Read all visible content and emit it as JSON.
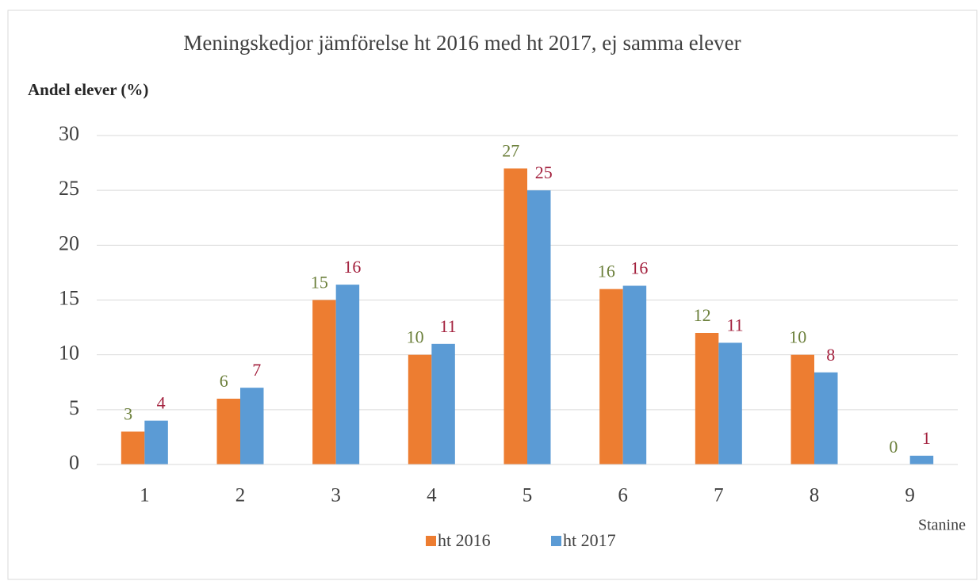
{
  "chart_data": {
    "type": "bar",
    "title": "Meningskedjor jämförelse ht 2016 med ht 2017, ej samma elever",
    "y_label": "Andel elever (%)",
    "x_label": "Stanine",
    "categories": [
      "1",
      "2",
      "3",
      "4",
      "5",
      "6",
      "7",
      "8",
      "9"
    ],
    "series": [
      {
        "name": "ht 2016",
        "color": "#ed7d31",
        "label_color": "#6b7f3a",
        "values": [
          3,
          6,
          15,
          10,
          27,
          16,
          12,
          10,
          0
        ]
      },
      {
        "name": "ht 2017",
        "color": "#5b9bd5",
        "label_color": "#a3203d",
        "values": [
          4,
          7,
          16.4,
          11,
          25,
          16.3,
          11.1,
          8.4,
          0.8
        ],
        "value_labels": [
          "4",
          "7",
          "16",
          "11",
          "25",
          "16",
          "11",
          "8",
          "1"
        ]
      }
    ],
    "ylim": [
      0,
      30
    ],
    "yticks": [
      0,
      5,
      10,
      15,
      20,
      25,
      30
    ],
    "grid": true
  }
}
